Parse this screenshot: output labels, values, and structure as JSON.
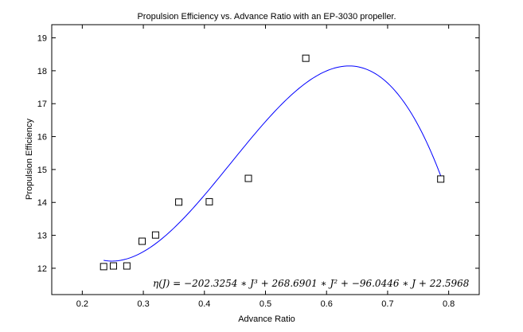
{
  "chart_data": {
    "type": "scatter",
    "title": "Propulsion Efficiency vs. Advance Ratio with an EP-3030 propeller.",
    "xlabel": "Advance Ratio",
    "ylabel": "Propulsion Efficiency",
    "xlim": [
      0.15,
      0.85
    ],
    "ylim": [
      11.2,
      19.4
    ],
    "xticks": [
      0.2,
      0.3,
      0.4,
      0.5,
      0.6,
      0.7,
      0.8
    ],
    "xtick_labels": [
      "0.2",
      "0.3",
      "0.4",
      "0.5",
      "0.6",
      "0.7",
      "0.8"
    ],
    "yticks": [
      12,
      13,
      14,
      15,
      16,
      17,
      18,
      19
    ],
    "ytick_labels": [
      "12",
      "13",
      "14",
      "15",
      "16",
      "17",
      "18",
      "19"
    ],
    "grid": false,
    "series": [
      {
        "marker": "square",
        "color": "#000000",
        "x": [
          0.235,
          0.251,
          0.273,
          0.298,
          0.32,
          0.358,
          0.408,
          0.472,
          0.566,
          0.787
        ],
        "y": [
          12.05,
          12.07,
          12.07,
          12.82,
          13.01,
          14.01,
          14.02,
          14.73,
          18.38,
          14.71
        ]
      },
      {
        "style": "line",
        "color": "#0000ff",
        "coefficients": [
          -202.3254,
          268.6901,
          -96.0446,
          22.5968
        ],
        "x_range": [
          0.235,
          0.787
        ]
      }
    ],
    "equation": "η(J) = −202.3254 ∗ J³ + 268.6901 ∗ J² + −96.0446 ∗ J + 22.5968"
  }
}
